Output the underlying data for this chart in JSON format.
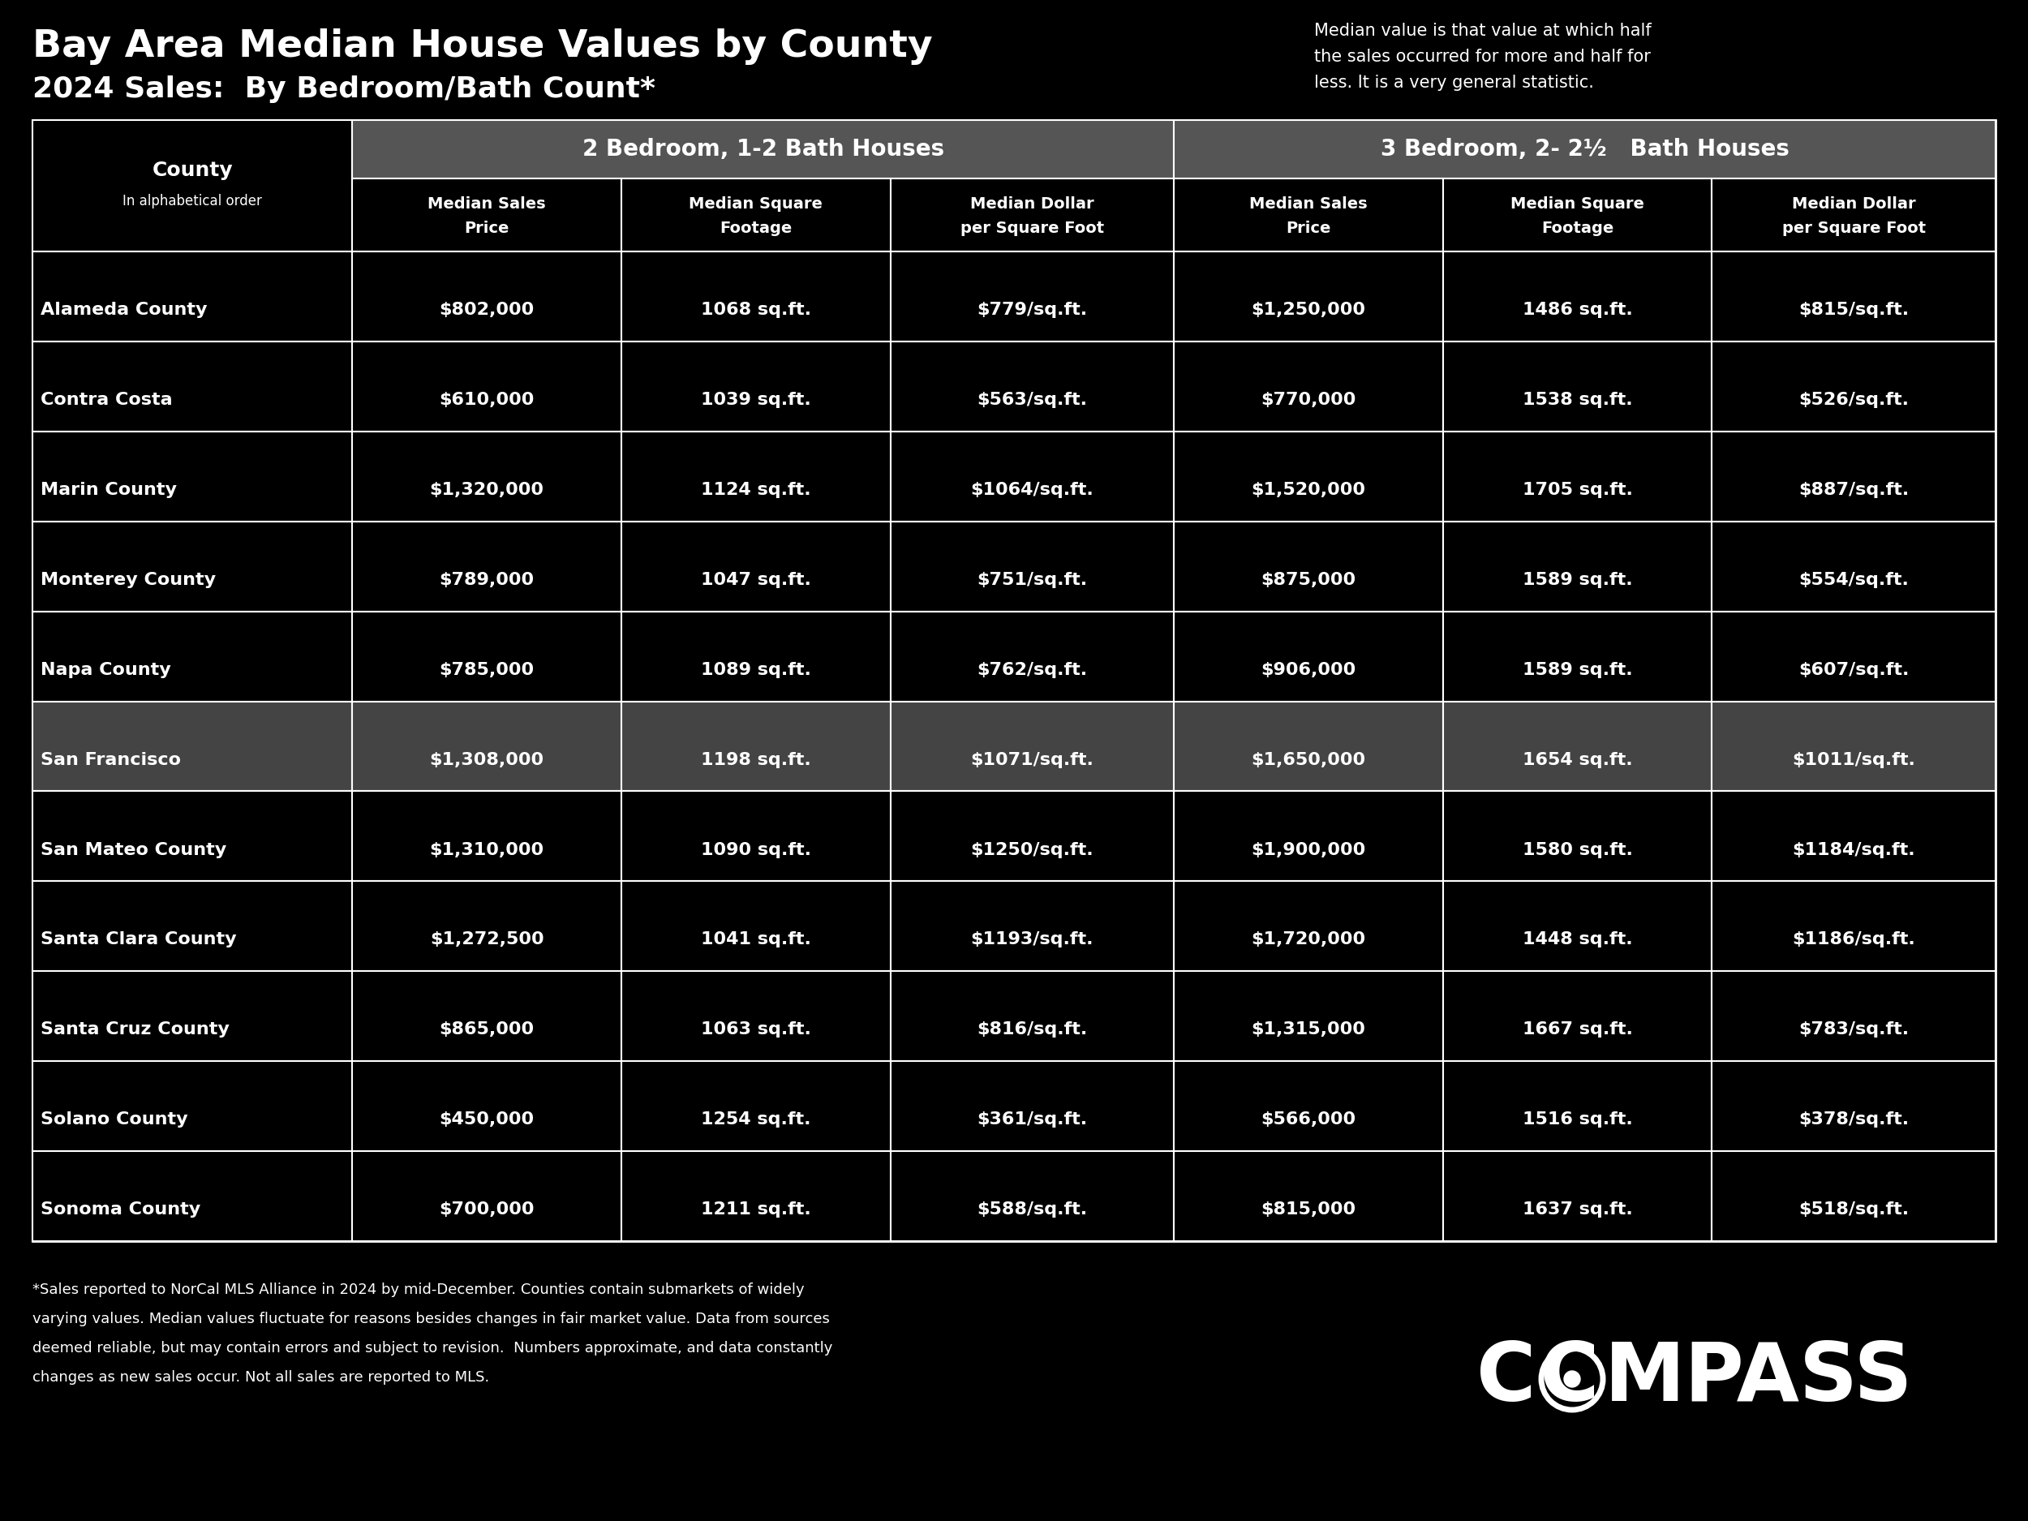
{
  "title_line1": "Bay Area Median House Values by County",
  "title_line2": "2024 Sales:  By Bedroom/Bath Count*",
  "subtitle_right": "Median value is that value at which half\nthe sales occurred for more and half for\nless. It is a very general statistic.",
  "col_group1": "2 Bedroom, 1-2 Bath Houses",
  "col_group2": "3 Bedroom, 2- 2½   Bath Houses",
  "col_headers_2br": [
    "Median Sales\nPrice",
    "Median Square\nFootage",
    "Median Dollar\nper Square Foot"
  ],
  "col_headers_3br": [
    "Median Sales\nPrice",
    "Median Square\nFootage",
    "Median Dollar\nper Square Foot"
  ],
  "counties": [
    "Alameda County",
    "Contra Costa",
    "Marin County",
    "Monterey County",
    "Napa County",
    "San Francisco",
    "San Mateo County",
    "Santa Clara County",
    "Santa Cruz County",
    "Solano County",
    "Sonoma County"
  ],
  "data_2br": [
    [
      "$802,000",
      "1068 sq.ft.",
      "$779/sq.ft."
    ],
    [
      "$610,000",
      "1039 sq.ft.",
      "$563/sq.ft."
    ],
    [
      "$1,320,000",
      "1124 sq.ft.",
      "$1064/sq.ft."
    ],
    [
      "$789,000",
      "1047 sq.ft.",
      "$751/sq.ft."
    ],
    [
      "$785,000",
      "1089 sq.ft.",
      "$762/sq.ft."
    ],
    [
      "$1,308,000",
      "1198 sq.ft.",
      "$1071/sq.ft."
    ],
    [
      "$1,310,000",
      "1090 sq.ft.",
      "$1250/sq.ft."
    ],
    [
      "$1,272,500",
      "1041 sq.ft.",
      "$1193/sq.ft."
    ],
    [
      "$865,000",
      "1063 sq.ft.",
      "$816/sq.ft."
    ],
    [
      "$450,000",
      "1254 sq.ft.",
      "$361/sq.ft."
    ],
    [
      "$700,000",
      "1211 sq.ft.",
      "$588/sq.ft."
    ]
  ],
  "data_3br": [
    [
      "$1,250,000",
      "1486 sq.ft.",
      "$815/sq.ft."
    ],
    [
      "$770,000",
      "1538 sq.ft.",
      "$526/sq.ft."
    ],
    [
      "$1,520,000",
      "1705 sq.ft.",
      "$887/sq.ft."
    ],
    [
      "$875,000",
      "1589 sq.ft.",
      "$554/sq.ft."
    ],
    [
      "$906,000",
      "1589 sq.ft.",
      "$607/sq.ft."
    ],
    [
      "$1,650,000",
      "1654 sq.ft.",
      "$1011/sq.ft."
    ],
    [
      "$1,900,000",
      "1580 sq.ft.",
      "$1184/sq.ft."
    ],
    [
      "$1,720,000",
      "1448 sq.ft.",
      "$1186/sq.ft."
    ],
    [
      "$1,315,000",
      "1667 sq.ft.",
      "$783/sq.ft."
    ],
    [
      "$566,000",
      "1516 sq.ft.",
      "$378/sq.ft."
    ],
    [
      "$815,000",
      "1637 sq.ft.",
      "$518/sq.ft."
    ]
  ],
  "highlighted_rows": [
    5
  ],
  "bg_color": "#000000",
  "header_group_bg": "#555555",
  "row_highlight_bg": "#444444",
  "row_normal_bg": "#000000",
  "text_color": "#ffffff",
  "footer_text": "*Sales reported to NorCal MLS Alliance in 2024 by mid-December. Counties contain submarkets of widely\nvarying values. Median values fluctuate for reasons besides changes in fair market value. Data from sources\ndeemed reliable, but may contain errors and subject to revision.  Numbers approximate, and data constantly\nchanges as new sales occur. Not all sales are reported to MLS."
}
